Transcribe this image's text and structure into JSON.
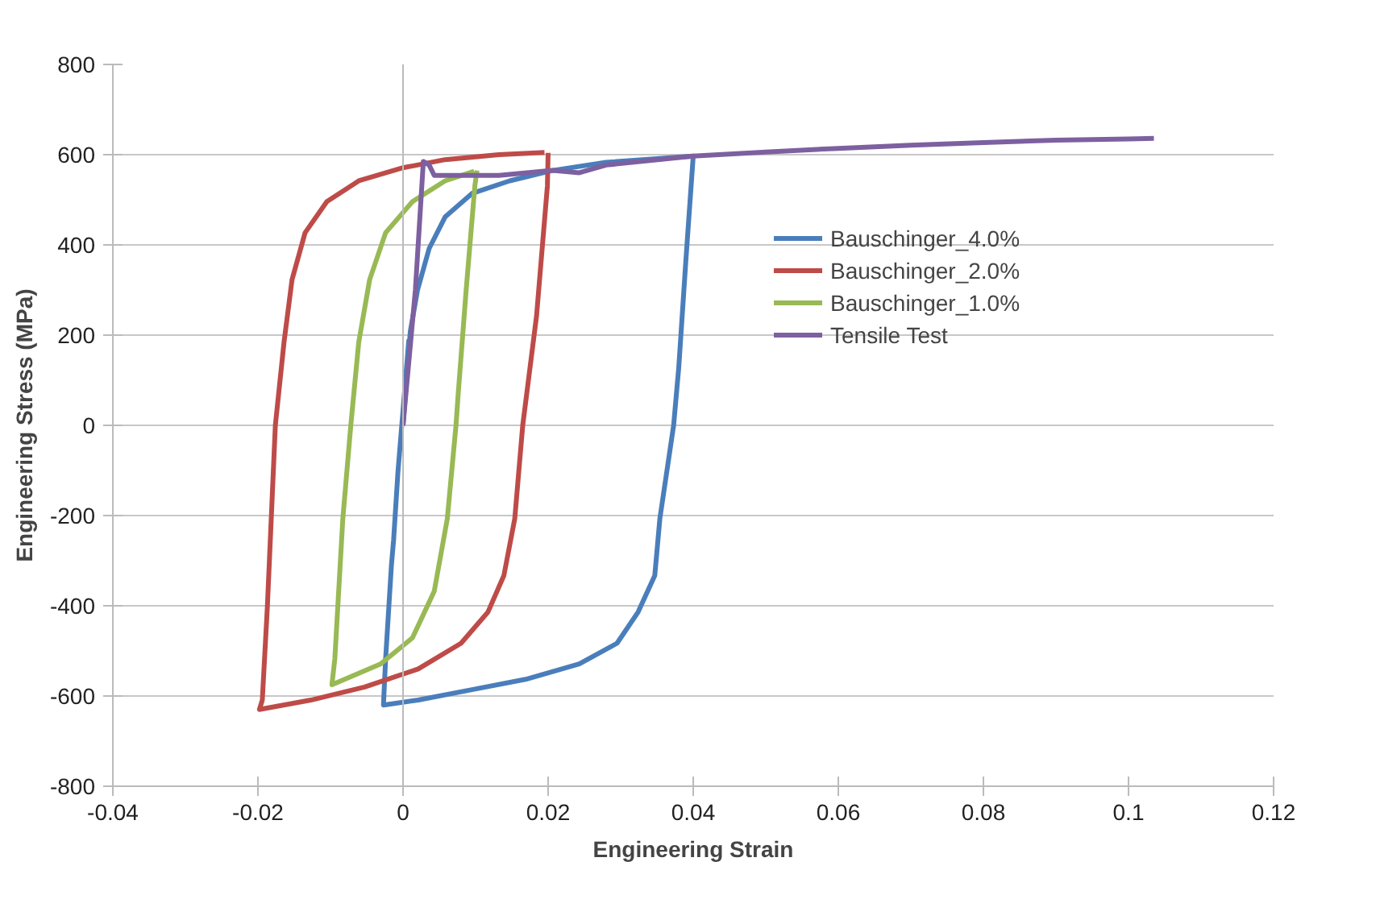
{
  "chart_data": {
    "type": "line",
    "xlabel": "Engineering Strain",
    "ylabel": "Engineering Stress (MPa)",
    "xlim": [
      -0.04,
      0.12
    ],
    "xticks": [
      -0.04,
      -0.02,
      0,
      0.02,
      0.04,
      0.06,
      0.08,
      0.1,
      0.12
    ],
    "ylim": [
      -800,
      800
    ],
    "yticks": [
      -800,
      -600,
      -400,
      -200,
      0,
      200,
      400,
      600,
      800
    ],
    "grid": "y",
    "ref_lines": [
      {
        "axis": "x",
        "value": 0,
        "color": "#bbbbbb"
      }
    ],
    "legend": "top right",
    "line_style": "solid",
    "series": [
      {
        "name": "Bauschinger_4.0%",
        "color": "#4a7ebb",
        "x": [
          0,
          0.001,
          0.002,
          0.0036,
          0.0058,
          0.0095,
          0.0147,
          0.0206,
          0.028,
          0.04,
          0.039,
          0.038,
          0.0373,
          0.0354,
          0.0347,
          0.0324,
          0.0295,
          0.0243,
          0.0169,
          0.0095,
          0.0021,
          -0.0027,
          -0.0024,
          -0.0016,
          -0.0013,
          -0.0007,
          0.0008
        ],
        "values": [
          0,
          208,
          300,
          392,
          462,
          514,
          542,
          565,
          583,
          597,
          369,
          127,
          0,
          -207,
          -333,
          -414,
          -483,
          -529,
          -563,
          -586,
          -609,
          -620,
          -517,
          -310,
          -254,
          -103,
          190
        ]
      },
      {
        "name": "Bauschinger_2.0%",
        "color": "#be4b48",
        "x": [
          0.02,
          0.0199,
          0.0184,
          0.0165,
          0.0154,
          0.0139,
          0.0117,
          0.008,
          0.0021,
          -0.0053,
          -0.0127,
          -0.0198,
          -0.0194,
          -0.0187,
          -0.0176,
          -0.0164,
          -0.0153,
          -0.0135,
          -0.0105,
          -0.0061,
          0,
          0.0058,
          0.0132,
          0.0195
        ],
        "values": [
          604,
          531,
          242,
          0,
          -207,
          -333,
          -414,
          -483,
          -540,
          -580,
          -609,
          -630,
          -609,
          -402,
          0,
          185,
          323,
          427,
          496,
          542,
          571,
          589,
          600,
          605
        ]
      },
      {
        "name": "Bauschinger_1.0%",
        "color": "#98b954",
        "x": [
          0.0102,
          0.0099,
          0.0087,
          0.0076,
          0.0073,
          0.0061,
          0.0043,
          0.0013,
          -0.0031,
          -0.0098,
          -0.0094,
          -0.0083,
          -0.0072,
          -0.0061,
          -0.0046,
          -0.0024,
          0.0013,
          0.0058,
          0.0098
        ],
        "values": [
          565,
          531,
          300,
          69,
          0,
          -207,
          -368,
          -471,
          -529,
          -575,
          -517,
          -207,
          0,
          185,
          323,
          427,
          496,
          542,
          563
        ]
      },
      {
        "name": "Tensile Test",
        "color": "#7d60a0",
        "x": [
          0,
          0.0017,
          0.0028,
          0.0036,
          0.0043,
          0.0132,
          0.0206,
          0.0243,
          0.028,
          0.04,
          0.05,
          0.06,
          0.07,
          0.08,
          0.09,
          0.1,
          0.1035
        ],
        "values": [
          0,
          300,
          585,
          577,
          554,
          554,
          565,
          560,
          577,
          597,
          606,
          614,
          621,
          627,
          632,
          635,
          636
        ]
      }
    ]
  }
}
